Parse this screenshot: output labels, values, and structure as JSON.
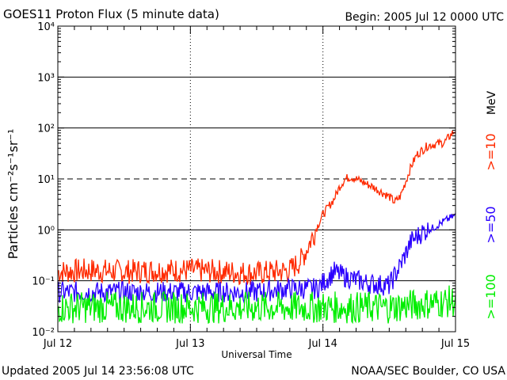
{
  "header": {
    "title": "GOES11 Proton Flux (5 minute data)",
    "begin": "Begin: 2005 Jul 12 0000 UTC"
  },
  "footer": {
    "updated": "Updated 2005 Jul 14 23:56:08 UTC",
    "credit": "NOAA/SEC Boulder, CO USA"
  },
  "chart_data": {
    "type": "line",
    "title": "GOES11 Proton Flux (5 minute data)",
    "xlabel": "Universal Time",
    "ylabel": "Particles cm⁻²s⁻¹sr⁻¹",
    "yscale": "log",
    "ylim": [
      0.01,
      10000
    ],
    "xlim": [
      "2005-07-12",
      "2005-07-15"
    ],
    "x_ticks": [
      "Jul 12",
      "Jul 13",
      "Jul 14",
      "Jul 15"
    ],
    "y_ticks": [
      "10⁻²",
      "10⁻¹",
      "10⁰",
      "10¹",
      "10²",
      "10³",
      "10⁴"
    ],
    "reference_lines": [
      {
        "y": 10,
        "style": "dashed"
      },
      {
        "y": 0.1,
        "style": "solid"
      },
      {
        "y": 1,
        "style": "solid"
      },
      {
        "y": 100,
        "style": "solid"
      },
      {
        "y": 1000,
        "style": "solid"
      }
    ],
    "units_label": "MeV",
    "series": [
      {
        "name": ">=10",
        "color": "#ff2a00",
        "values": [
          [
            "2005-07-12 00:00",
            0.15
          ],
          [
            "2005-07-12 06:00",
            0.16
          ],
          [
            "2005-07-12 12:00",
            0.15
          ],
          [
            "2005-07-12 18:00",
            0.16
          ],
          [
            "2005-07-13 00:00",
            0.16
          ],
          [
            "2005-07-13 06:00",
            0.15
          ],
          [
            "2005-07-13 12:00",
            0.14
          ],
          [
            "2005-07-13 18:00",
            0.16
          ],
          [
            "2005-07-13 20:00",
            0.25
          ],
          [
            "2005-07-13 21:00",
            0.4
          ],
          [
            "2005-07-13 22:00",
            0.7
          ],
          [
            "2005-07-14 00:00",
            2
          ],
          [
            "2005-07-14 02:00",
            4
          ],
          [
            "2005-07-14 03:00",
            7
          ],
          [
            "2005-07-14 04:00",
            10
          ],
          [
            "2005-07-14 05:00",
            11
          ],
          [
            "2005-07-14 06:00",
            10
          ],
          [
            "2005-07-14 09:00",
            7
          ],
          [
            "2005-07-14 12:00",
            4.5
          ],
          [
            "2005-07-14 13:00",
            3.5
          ],
          [
            "2005-07-14 14:00",
            4.5
          ],
          [
            "2005-07-14 15:00",
            9
          ],
          [
            "2005-07-14 16:00",
            18
          ],
          [
            "2005-07-14 17:00",
            30
          ],
          [
            "2005-07-14 19:00",
            45
          ],
          [
            "2005-07-14 21:00",
            50
          ],
          [
            "2005-07-14 22:00",
            52
          ],
          [
            "2005-07-14 23:00",
            70
          ],
          [
            "2005-07-14 23:55",
            90
          ]
        ]
      },
      {
        "name": ">=50",
        "color": "#2a00ff",
        "values": [
          [
            "2005-07-12 00:00",
            0.06
          ],
          [
            "2005-07-12 12:00",
            0.06
          ],
          [
            "2005-07-13 00:00",
            0.06
          ],
          [
            "2005-07-13 12:00",
            0.06
          ],
          [
            "2005-07-13 18:00",
            0.07
          ],
          [
            "2005-07-13 23:00",
            0.07
          ],
          [
            "2005-07-14 02:00",
            0.15
          ],
          [
            "2005-07-14 04:00",
            0.12
          ],
          [
            "2005-07-14 08:00",
            0.09
          ],
          [
            "2005-07-14 12:00",
            0.08
          ],
          [
            "2005-07-14 14:00",
            0.2
          ],
          [
            "2005-07-14 16:00",
            0.6
          ],
          [
            "2005-07-14 18:00",
            0.9
          ],
          [
            "2005-07-14 20:00",
            1.1
          ],
          [
            "2005-07-14 22:00",
            1.5
          ],
          [
            "2005-07-14 23:55",
            1.9
          ]
        ]
      },
      {
        "name": ">=100",
        "color": "#00ee00",
        "values": [
          [
            "2005-07-12 00:00",
            0.03
          ],
          [
            "2005-07-12 12:00",
            0.03
          ],
          [
            "2005-07-13 00:00",
            0.03
          ],
          [
            "2005-07-13 12:00",
            0.03
          ],
          [
            "2005-07-14 00:00",
            0.03
          ],
          [
            "2005-07-14 12:00",
            0.03
          ],
          [
            "2005-07-14 18:00",
            0.035
          ],
          [
            "2005-07-14 23:55",
            0.04
          ]
        ]
      }
    ]
  }
}
